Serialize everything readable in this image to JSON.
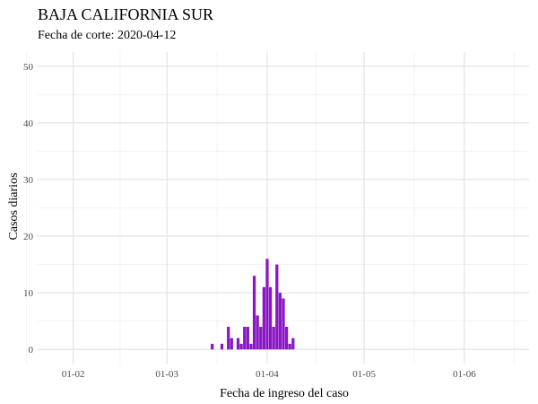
{
  "chart_data": {
    "type": "bar",
    "title": "BAJA CALIFORNIA SUR",
    "subtitle": "Fecha de corte: 2020-04-12",
    "xlabel": "Fecha de ingreso del caso",
    "ylabel": "Casos diarios",
    "x_ticks": [
      {
        "label": "01-02",
        "date": "2020-02-01"
      },
      {
        "label": "01-03",
        "date": "2020-03-01"
      },
      {
        "label": "01-04",
        "date": "2020-04-01"
      },
      {
        "label": "01-05",
        "date": "2020-05-01"
      },
      {
        "label": "01-06",
        "date": "2020-06-01"
      }
    ],
    "xlim": [
      "2020-01-21",
      "2020-06-21"
    ],
    "y_ticks": [
      0,
      10,
      20,
      30,
      40,
      50
    ],
    "ylim": [
      -2.5,
      52.5
    ],
    "grid": true,
    "bar_color": "#8a15c4",
    "series": [
      {
        "x": [
          "2020-03-15",
          "2020-03-18",
          "2020-03-20",
          "2020-03-21",
          "2020-03-23",
          "2020-03-24",
          "2020-03-25",
          "2020-03-26",
          "2020-03-27",
          "2020-03-28",
          "2020-03-29",
          "2020-03-30",
          "2020-03-31",
          "2020-04-01",
          "2020-04-02",
          "2020-04-03",
          "2020-04-04",
          "2020-04-05",
          "2020-04-06",
          "2020-04-07",
          "2020-04-08",
          "2020-04-09",
          "2020-04-10",
          "2020-04-11"
        ],
        "values": [
          1,
          1,
          4,
          2,
          2,
          1,
          4,
          4,
          1,
          13,
          6,
          4,
          11,
          16,
          11,
          4,
          15,
          10,
          9,
          4,
          1,
          2,
          0,
          0
        ]
      }
    ]
  }
}
